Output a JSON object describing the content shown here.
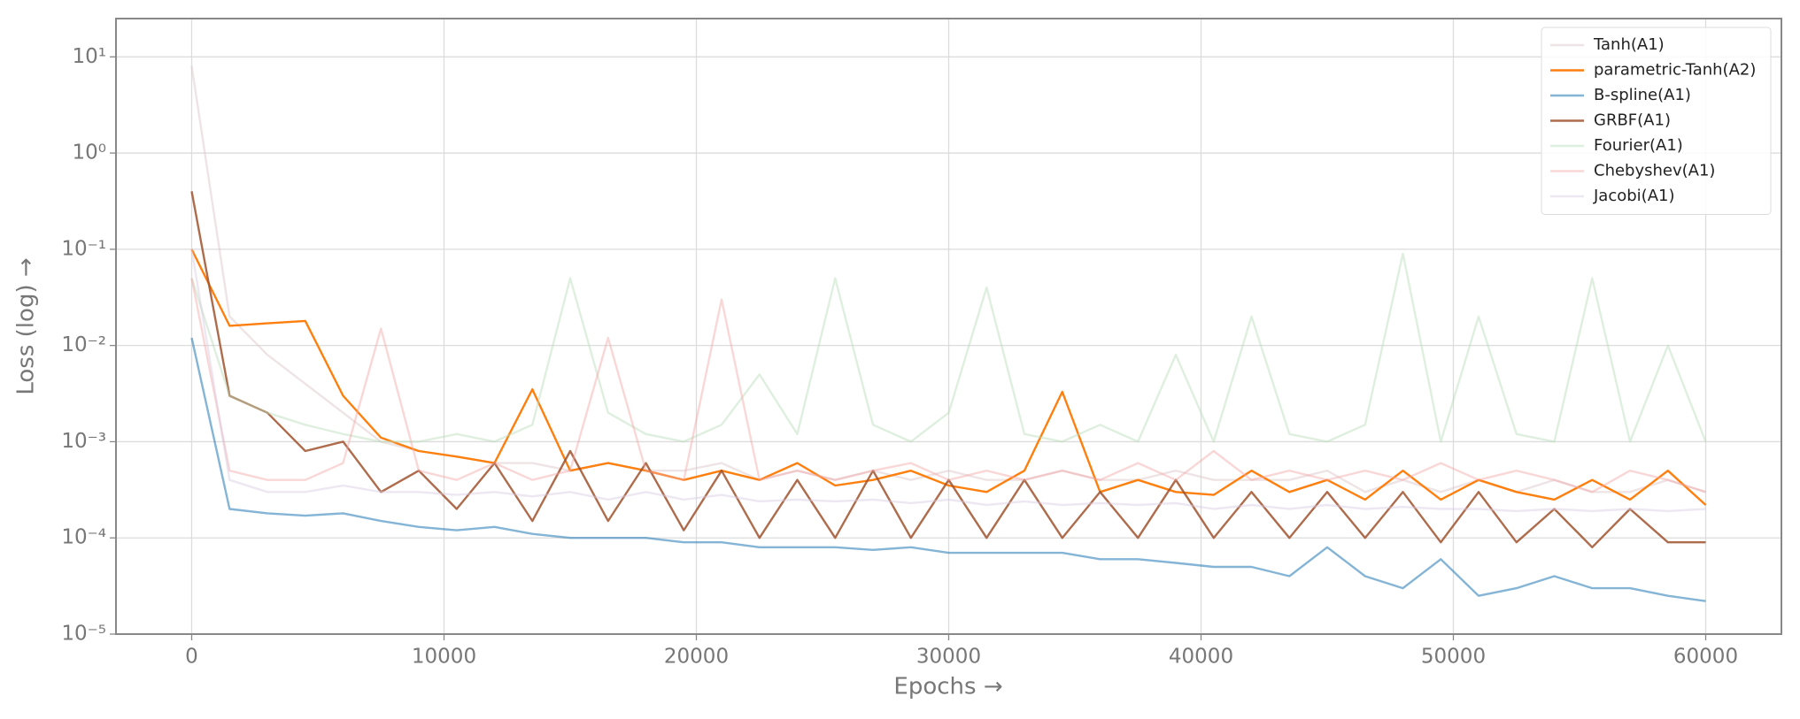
{
  "chart_data": {
    "type": "line",
    "xlabel": "Epochs →",
    "ylabel": "Loss (log) →",
    "yscale": "log",
    "grid": true,
    "legend_position": "upper right",
    "xlim": [
      -3000,
      63000
    ],
    "xticks": [
      0,
      10000,
      20000,
      30000,
      40000,
      50000,
      60000
    ],
    "ylim": [
      1e-05,
      25
    ],
    "yticks": [
      {
        "value": 1e-05,
        "label": "10⁻⁵"
      },
      {
        "value": 0.0001,
        "label": "10⁻⁴"
      },
      {
        "value": 0.001,
        "label": "10⁻³"
      },
      {
        "value": 0.01,
        "label": "10⁻²"
      },
      {
        "value": 0.1,
        "label": "10⁻¹"
      },
      {
        "value": 1,
        "label": "10⁰"
      },
      {
        "value": 10,
        "label": "10¹"
      }
    ],
    "x": [
      0,
      1500,
      3000,
      4500,
      6000,
      7500,
      9000,
      10500,
      12000,
      13500,
      15000,
      16500,
      18000,
      19500,
      21000,
      22500,
      24000,
      25500,
      27000,
      28500,
      30000,
      31500,
      33000,
      34500,
      36000,
      37500,
      39000,
      40500,
      42000,
      43500,
      45000,
      46500,
      48000,
      49500,
      51000,
      52500,
      54000,
      55500,
      57000,
      58500,
      60000
    ],
    "series": [
      {
        "name": "Tanh(A1)",
        "color": "#d9c3c8",
        "alpha": 0.45,
        "values": [
          8,
          0.02,
          0.008,
          0.004,
          0.002,
          0.001,
          0.0008,
          0.0007,
          0.0006,
          0.0006,
          0.0005,
          0.0006,
          0.0005,
          0.0005,
          0.0006,
          0.0004,
          0.0005,
          0.0004,
          0.0005,
          0.0004,
          0.0005,
          0.0004,
          0.0004,
          0.0005,
          0.0004,
          0.0004,
          0.0005,
          0.0004,
          0.0004,
          0.0004,
          0.0005,
          0.0003,
          0.0004,
          0.0003,
          0.0004,
          0.0003,
          0.0004,
          0.0003,
          0.0003,
          0.0004,
          0.0003
        ]
      },
      {
        "name": "parametric-Tanh(A2)",
        "color": "#ff7f0e",
        "alpha": 1,
        "values": [
          0.1,
          0.016,
          0.017,
          0.018,
          0.003,
          0.0011,
          0.0008,
          0.0007,
          0.0006,
          0.0035,
          0.0005,
          0.0006,
          0.0005,
          0.0004,
          0.0005,
          0.0004,
          0.0006,
          0.00035,
          0.0004,
          0.0005,
          0.00035,
          0.0003,
          0.0005,
          0.0033,
          0.0003,
          0.0004,
          0.0003,
          0.00028,
          0.0005,
          0.0003,
          0.0004,
          0.00025,
          0.0005,
          0.00025,
          0.0004,
          0.0003,
          0.00025,
          0.0004,
          0.00025,
          0.0005,
          0.00022
        ]
      },
      {
        "name": "B-spline(A1)",
        "color": "#1f77b4",
        "alpha": 0.55,
        "values": [
          0.012,
          0.0002,
          0.00018,
          0.00017,
          0.00018,
          0.00015,
          0.00013,
          0.00012,
          0.00013,
          0.00011,
          0.0001,
          0.0001,
          0.0001,
          9e-05,
          9e-05,
          8e-05,
          8e-05,
          8e-05,
          7.5e-05,
          8e-05,
          7e-05,
          7e-05,
          7e-05,
          7e-05,
          6e-05,
          6e-05,
          5.5e-05,
          5e-05,
          5e-05,
          4e-05,
          8e-05,
          4e-05,
          3e-05,
          6e-05,
          2.5e-05,
          3e-05,
          4e-05,
          3e-05,
          3e-05,
          2.5e-05,
          2.2e-05
        ]
      },
      {
        "name": "GRBF(A1)",
        "color": "#a0522d",
        "alpha": 0.85,
        "values": [
          0.4,
          0.003,
          0.002,
          0.0008,
          0.001,
          0.0003,
          0.0005,
          0.0002,
          0.0006,
          0.00015,
          0.0008,
          0.00015,
          0.0006,
          0.00012,
          0.0005,
          0.0001,
          0.0004,
          0.0001,
          0.0005,
          0.0001,
          0.0004,
          0.0001,
          0.0004,
          0.0001,
          0.0003,
          0.0001,
          0.0004,
          0.0001,
          0.0003,
          0.0001,
          0.0003,
          0.0001,
          0.0003,
          9e-05,
          0.0003,
          9e-05,
          0.0002,
          8e-05,
          0.0002,
          9e-05,
          9e-05
        ]
      },
      {
        "name": "Fourier(A1)",
        "color": "#b9dcb9",
        "alpha": 0.45,
        "values": [
          0.05,
          0.003,
          0.002,
          0.0015,
          0.0012,
          0.001,
          0.001,
          0.0012,
          0.001,
          0.0015,
          0.05,
          0.002,
          0.0012,
          0.001,
          0.0015,
          0.005,
          0.0012,
          0.05,
          0.0015,
          0.001,
          0.002,
          0.04,
          0.0012,
          0.001,
          0.0015,
          0.001,
          0.008,
          0.001,
          0.02,
          0.0012,
          0.001,
          0.0015,
          0.09,
          0.001,
          0.02,
          0.0012,
          0.001,
          0.05,
          0.001,
          0.01,
          0.001
        ]
      },
      {
        "name": "Chebyshev(A1)",
        "color": "#f4a6a6",
        "alpha": 0.45,
        "values": [
          0.05,
          0.0005,
          0.0004,
          0.0004,
          0.0006,
          0.015,
          0.0005,
          0.0004,
          0.0006,
          0.0004,
          0.0005,
          0.012,
          0.0005,
          0.0004,
          0.03,
          0.0004,
          0.0005,
          0.0004,
          0.0005,
          0.0006,
          0.0004,
          0.0005,
          0.0004,
          0.0005,
          0.0004,
          0.0006,
          0.0004,
          0.0008,
          0.0004,
          0.0005,
          0.0004,
          0.0005,
          0.0004,
          0.0006,
          0.0004,
          0.0005,
          0.0004,
          0.0003,
          0.0005,
          0.0004,
          0.0003
        ]
      },
      {
        "name": "Jacobi(A1)",
        "color": "#d7c9e3",
        "alpha": 0.45,
        "values": [
          0.1,
          0.0004,
          0.0003,
          0.0003,
          0.00035,
          0.0003,
          0.0003,
          0.00028,
          0.0003,
          0.00027,
          0.0003,
          0.00025,
          0.0003,
          0.00025,
          0.00028,
          0.00024,
          0.00025,
          0.00024,
          0.00025,
          0.00023,
          0.00025,
          0.00022,
          0.00024,
          0.00022,
          0.00023,
          0.00022,
          0.00023,
          0.0002,
          0.00022,
          0.0002,
          0.00022,
          0.0002,
          0.00021,
          0.0002,
          0.0002,
          0.00019,
          0.0002,
          0.00019,
          0.0002,
          0.00019,
          0.0002
        ]
      }
    ]
  }
}
